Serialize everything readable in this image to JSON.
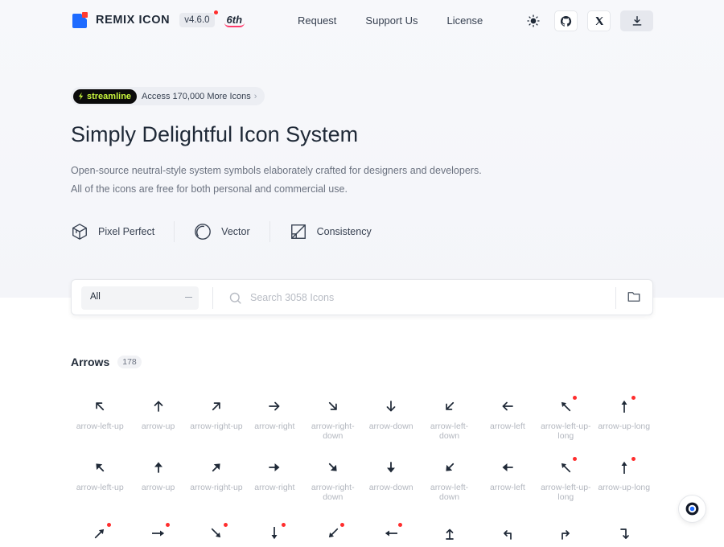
{
  "brand": {
    "name": "REMIX ICON",
    "version": "v4.6.0",
    "anniversary": "6th"
  },
  "nav": [
    {
      "label": "Request"
    },
    {
      "label": "Support Us"
    },
    {
      "label": "License"
    }
  ],
  "promo": {
    "badge": "streamline",
    "text": "Access 170,000 More Icons"
  },
  "hero": {
    "title": "Simply Delightful Icon System",
    "desc1": "Open-source neutral-style system symbols elaborately crafted for designers and developers.",
    "desc2": "All of the icons are free for both personal and commercial use."
  },
  "features": [
    {
      "label": "Pixel Perfect"
    },
    {
      "label": "Vector"
    },
    {
      "label": "Consistency"
    }
  ],
  "search": {
    "category": "All",
    "placeholder": "Search 3058 Icons"
  },
  "section": {
    "title": "Arrows",
    "count": "178"
  },
  "rows": [
    [
      {
        "name": "arrow-left-up",
        "icon": "arrow-left-up-line-icon",
        "new": false
      },
      {
        "name": "arrow-up",
        "icon": "arrow-up-line-icon",
        "new": false
      },
      {
        "name": "arrow-right-up",
        "icon": "arrow-right-up-line-icon",
        "new": false
      },
      {
        "name": "arrow-right",
        "icon": "arrow-right-line-icon",
        "new": false
      },
      {
        "name": "arrow-right-down",
        "icon": "arrow-right-down-line-icon",
        "new": false
      },
      {
        "name": "arrow-down",
        "icon": "arrow-down-line-icon",
        "new": false
      },
      {
        "name": "arrow-left-down",
        "icon": "arrow-left-down-line-icon",
        "new": false
      },
      {
        "name": "arrow-left",
        "icon": "arrow-left-line-icon",
        "new": false
      },
      {
        "name": "arrow-left-up-long",
        "icon": "arrow-left-up-long-line-icon",
        "new": true
      },
      {
        "name": "arrow-up-long",
        "icon": "arrow-up-long-line-icon",
        "new": true
      }
    ],
    [
      {
        "name": "arrow-left-up",
        "icon": "arrow-left-up-fill-icon",
        "new": false
      },
      {
        "name": "arrow-up",
        "icon": "arrow-up-fill-icon",
        "new": false
      },
      {
        "name": "arrow-right-up",
        "icon": "arrow-right-up-fill-icon",
        "new": false
      },
      {
        "name": "arrow-right",
        "icon": "arrow-right-fill-icon",
        "new": false
      },
      {
        "name": "arrow-right-down",
        "icon": "arrow-right-down-fill-icon",
        "new": false
      },
      {
        "name": "arrow-down",
        "icon": "arrow-down-fill-icon",
        "new": false
      },
      {
        "name": "arrow-left-down",
        "icon": "arrow-left-down-fill-icon",
        "new": false
      },
      {
        "name": "arrow-left",
        "icon": "arrow-left-fill-icon",
        "new": false
      },
      {
        "name": "arrow-left-up-long",
        "icon": "arrow-left-up-long-fill-icon",
        "new": true
      },
      {
        "name": "arrow-up-long",
        "icon": "arrow-up-long-fill-icon",
        "new": true
      }
    ],
    [
      {
        "name": "",
        "icon": "arrow-right-up-long-icon",
        "new": true
      },
      {
        "name": "",
        "icon": "arrow-right-long-icon",
        "new": true
      },
      {
        "name": "",
        "icon": "arrow-right-down-long-icon",
        "new": true
      },
      {
        "name": "",
        "icon": "arrow-down-long-icon",
        "new": true
      },
      {
        "name": "",
        "icon": "arrow-left-down-long-icon",
        "new": true
      },
      {
        "name": "",
        "icon": "arrow-left-long-icon",
        "new": true
      },
      {
        "name": "",
        "icon": "arrow-up-from-line-icon",
        "new": false
      },
      {
        "name": "",
        "icon": "corner-up-left-icon",
        "new": false
      },
      {
        "name": "",
        "icon": "corner-up-right-icon",
        "new": false
      },
      {
        "name": "",
        "icon": "corner-down-right-icon",
        "new": false
      }
    ]
  ],
  "colors": {
    "accent": "#1e6bff",
    "brand_red": "#ff3b30",
    "new_dot": "#ff2d2d",
    "streamline_green": "#c7f43d"
  }
}
